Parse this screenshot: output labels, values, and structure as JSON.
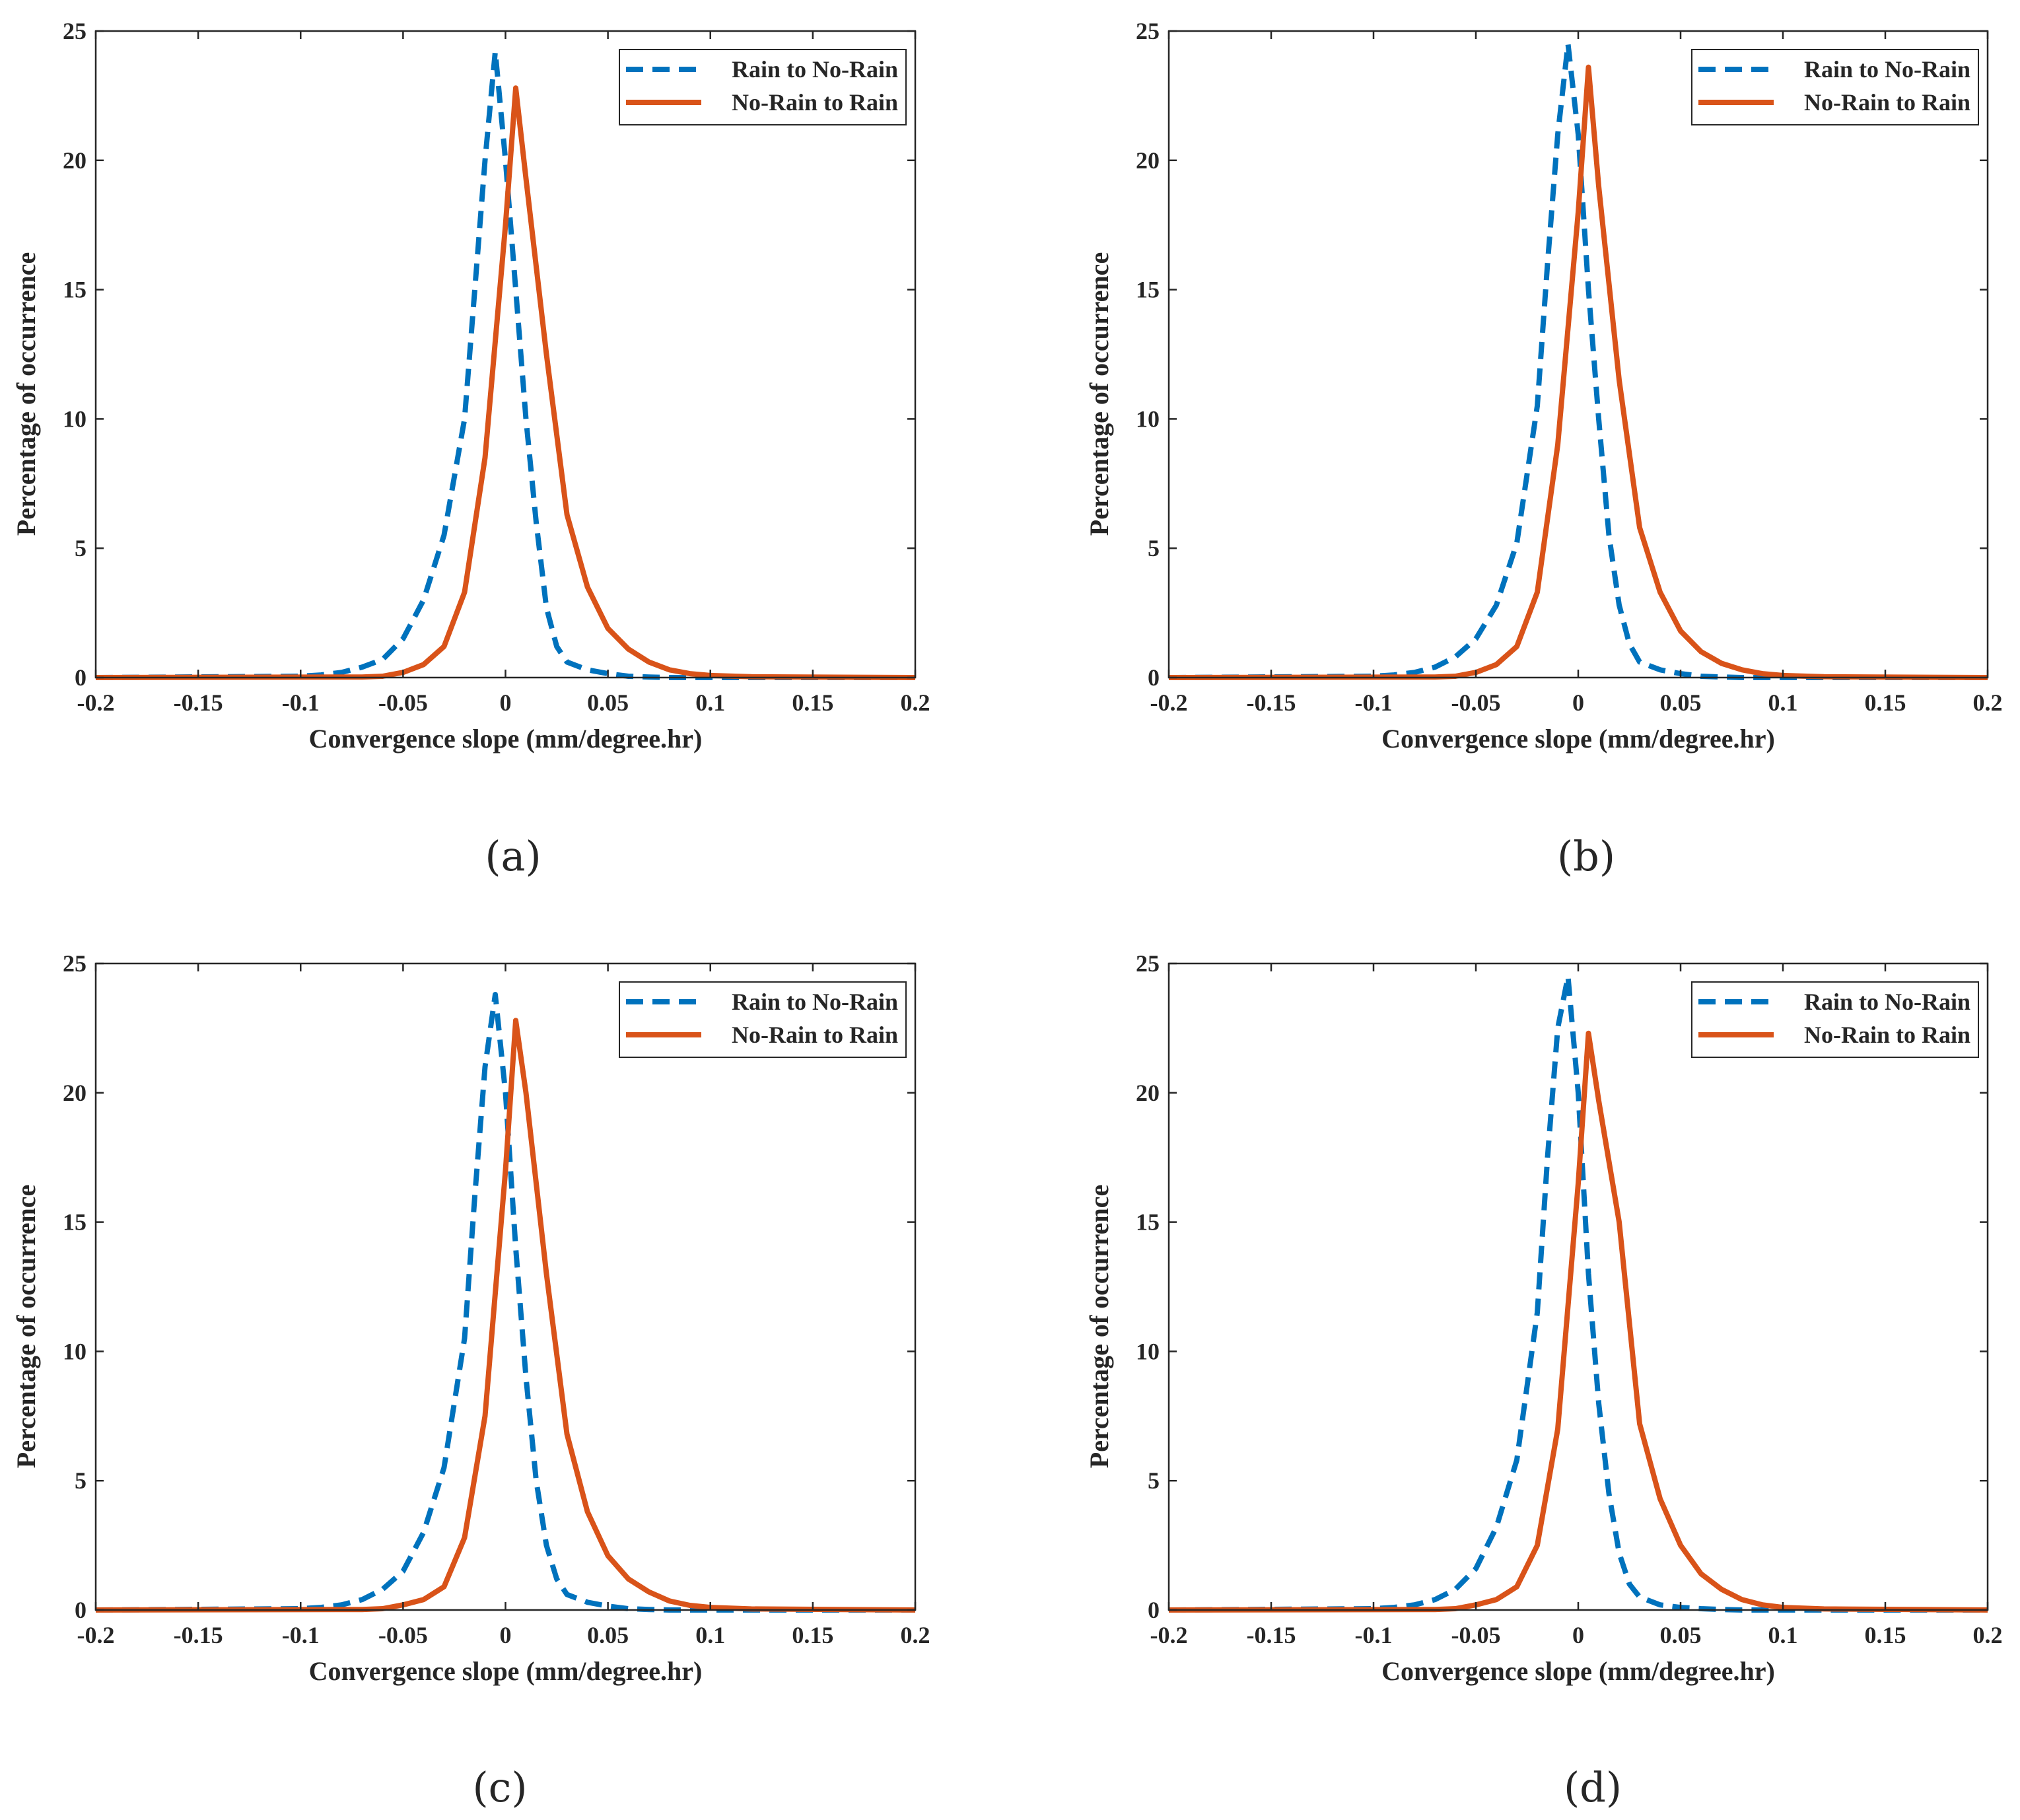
{
  "figure": {
    "captions": [
      "(a)",
      "(b)",
      "(c)",
      "(d)"
    ]
  },
  "chart_data": [
    {
      "type": "line",
      "panel": "(a)",
      "xlabel": "Convergence slope (mm/degree.hr)",
      "ylabel": "Percentage of occurrence",
      "xlim": [
        -0.2,
        0.2
      ],
      "ylim": [
        0,
        25
      ],
      "xticks": [
        "-0.2",
        "-0.15",
        "-0.1",
        "-0.05",
        "0",
        "0.05",
        "0.1",
        "0.15",
        "0.2"
      ],
      "yticks": [
        "0",
        "5",
        "10",
        "15",
        "20",
        "25"
      ],
      "legend_position": "top-right",
      "series": [
        {
          "name": "Rain to No-Rain",
          "style": "dashed",
          "color": "#0072BD",
          "x": [
            -0.2,
            -0.1,
            -0.09,
            -0.08,
            -0.07,
            -0.06,
            -0.05,
            -0.04,
            -0.03,
            -0.02,
            -0.015,
            -0.01,
            -0.005,
            0,
            0.005,
            0.01,
            0.015,
            0.02,
            0.025,
            0.03,
            0.04,
            0.05,
            0.06,
            0.07,
            0.08,
            0.1,
            0.2
          ],
          "y": [
            0,
            0.05,
            0.1,
            0.2,
            0.4,
            0.7,
            1.5,
            3.0,
            5.5,
            10.0,
            15.0,
            20.0,
            24.2,
            20.0,
            15.0,
            10.0,
            6.0,
            2.7,
            1.2,
            0.6,
            0.3,
            0.15,
            0.05,
            0.02,
            0,
            0,
            0
          ]
        },
        {
          "name": "No-Rain to Rain",
          "style": "solid",
          "color": "#D95319",
          "x": [
            -0.2,
            -0.07,
            -0.06,
            -0.05,
            -0.04,
            -0.03,
            -0.02,
            -0.01,
            0,
            0.005,
            0.01,
            0.02,
            0.03,
            0.04,
            0.05,
            0.06,
            0.07,
            0.08,
            0.09,
            0.1,
            0.12,
            0.2
          ],
          "y": [
            0,
            0.02,
            0.05,
            0.2,
            0.5,
            1.2,
            3.3,
            8.5,
            17.5,
            22.8,
            19.3,
            12.5,
            6.3,
            3.5,
            1.9,
            1.1,
            0.6,
            0.3,
            0.15,
            0.08,
            0.03,
            0
          ]
        }
      ]
    },
    {
      "type": "line",
      "panel": "(b)",
      "xlabel": "Convergence slope (mm/degree.hr)",
      "ylabel": "Percentage of occurrence",
      "xlim": [
        -0.2,
        0.2
      ],
      "ylim": [
        0,
        25
      ],
      "xticks": [
        "-0.2",
        "-0.15",
        "-0.1",
        "-0.05",
        "0",
        "0.05",
        "0.1",
        "0.15",
        "0.2"
      ],
      "yticks": [
        "0",
        "5",
        "10",
        "15",
        "20",
        "25"
      ],
      "legend_position": "top-right",
      "series": [
        {
          "name": "Rain to No-Rain",
          "style": "dashed",
          "color": "#0072BD",
          "x": [
            -0.2,
            -0.1,
            -0.09,
            -0.08,
            -0.07,
            -0.06,
            -0.05,
            -0.04,
            -0.03,
            -0.02,
            -0.015,
            -0.01,
            -0.005,
            0,
            0.005,
            0.01,
            0.015,
            0.02,
            0.025,
            0.03,
            0.04,
            0.05,
            0.06,
            0.07,
            0.08,
            0.1,
            0.2
          ],
          "y": [
            0,
            0.05,
            0.1,
            0.2,
            0.4,
            0.8,
            1.5,
            2.8,
            5.2,
            10.5,
            16.0,
            21.0,
            24.5,
            21.0,
            15.0,
            10.0,
            5.5,
            2.8,
            1.3,
            0.6,
            0.3,
            0.15,
            0.05,
            0.02,
            0,
            0,
            0
          ]
        },
        {
          "name": "No-Rain to Rain",
          "style": "solid",
          "color": "#D95319",
          "x": [
            -0.2,
            -0.07,
            -0.06,
            -0.05,
            -0.04,
            -0.03,
            -0.02,
            -0.01,
            0,
            0.005,
            0.01,
            0.02,
            0.03,
            0.04,
            0.05,
            0.06,
            0.07,
            0.08,
            0.09,
            0.1,
            0.12,
            0.2
          ],
          "y": [
            0,
            0.02,
            0.05,
            0.2,
            0.5,
            1.2,
            3.3,
            9.0,
            18.0,
            23.6,
            19.0,
            11.5,
            5.8,
            3.3,
            1.8,
            1.0,
            0.55,
            0.3,
            0.15,
            0.08,
            0.03,
            0
          ]
        }
      ]
    },
    {
      "type": "line",
      "panel": "(c)",
      "xlabel": "Convergence slope (mm/degree.hr)",
      "ylabel": "Percentage of occurrence",
      "xlim": [
        -0.2,
        0.2
      ],
      "ylim": [
        0,
        25
      ],
      "xticks": [
        "-0.2",
        "-0.15",
        "-0.1",
        "-0.05",
        "0",
        "0.05",
        "0.1",
        "0.15",
        "0.2"
      ],
      "yticks": [
        "0",
        "5",
        "10",
        "15",
        "20",
        "25"
      ],
      "legend_position": "top-right",
      "series": [
        {
          "name": "Rain to No-Rain",
          "style": "dashed",
          "color": "#0072BD",
          "x": [
            -0.2,
            -0.1,
            -0.09,
            -0.08,
            -0.07,
            -0.06,
            -0.05,
            -0.04,
            -0.03,
            -0.02,
            -0.015,
            -0.01,
            -0.005,
            0,
            0.005,
            0.01,
            0.015,
            0.02,
            0.025,
            0.03,
            0.04,
            0.05,
            0.06,
            0.07,
            0.08,
            0.1,
            0.2
          ],
          "y": [
            0,
            0.05,
            0.1,
            0.2,
            0.4,
            0.8,
            1.5,
            3.0,
            5.5,
            10.5,
            16.0,
            21.0,
            23.8,
            20.0,
            14.0,
            9.0,
            5.0,
            2.5,
            1.2,
            0.6,
            0.3,
            0.15,
            0.05,
            0.02,
            0,
            0,
            0
          ]
        },
        {
          "name": "No-Rain to Rain",
          "style": "solid",
          "color": "#D95319",
          "x": [
            -0.2,
            -0.07,
            -0.06,
            -0.05,
            -0.04,
            -0.03,
            -0.02,
            -0.01,
            0,
            0.005,
            0.01,
            0.02,
            0.03,
            0.04,
            0.05,
            0.06,
            0.07,
            0.08,
            0.09,
            0.1,
            0.12,
            0.2
          ],
          "y": [
            0,
            0.02,
            0.05,
            0.2,
            0.4,
            0.9,
            2.8,
            7.5,
            17.0,
            22.8,
            20.0,
            13.0,
            6.8,
            3.8,
            2.1,
            1.2,
            0.7,
            0.35,
            0.18,
            0.1,
            0.04,
            0
          ]
        }
      ]
    },
    {
      "type": "line",
      "panel": "(d)",
      "xlabel": "Convergence slope (mm/degree.hr)",
      "ylabel": "Percentage of occurrence",
      "xlim": [
        -0.2,
        0.2
      ],
      "ylim": [
        0,
        25
      ],
      "xticks": [
        "-0.2",
        "-0.15",
        "-0.1",
        "-0.05",
        "0",
        "0.05",
        "0.1",
        "0.15",
        "0.2"
      ],
      "yticks": [
        "0",
        "5",
        "10",
        "15",
        "20",
        "25"
      ],
      "legend_position": "top-right",
      "series": [
        {
          "name": "Rain to No-Rain",
          "style": "dashed",
          "color": "#0072BD",
          "x": [
            -0.2,
            -0.1,
            -0.09,
            -0.08,
            -0.07,
            -0.06,
            -0.05,
            -0.04,
            -0.03,
            -0.02,
            -0.015,
            -0.01,
            -0.005,
            0,
            0.005,
            0.01,
            0.015,
            0.02,
            0.025,
            0.03,
            0.04,
            0.05,
            0.06,
            0.07,
            0.08,
            0.1,
            0.2
          ],
          "y": [
            0,
            0.05,
            0.1,
            0.2,
            0.4,
            0.8,
            1.6,
            3.2,
            5.8,
            11.5,
            17.5,
            22.5,
            24.5,
            20.0,
            13.0,
            8.0,
            4.5,
            2.2,
            1.0,
            0.5,
            0.2,
            0.1,
            0.05,
            0.02,
            0,
            0,
            0
          ]
        },
        {
          "name": "No-Rain to Rain",
          "style": "solid",
          "color": "#D95319",
          "x": [
            -0.2,
            -0.07,
            -0.06,
            -0.05,
            -0.04,
            -0.03,
            -0.02,
            -0.01,
            0,
            0.005,
            0.01,
            0.02,
            0.03,
            0.04,
            0.05,
            0.06,
            0.07,
            0.08,
            0.09,
            0.1,
            0.12,
            0.2
          ],
          "y": [
            0,
            0.02,
            0.05,
            0.2,
            0.4,
            0.9,
            2.5,
            7.0,
            16.5,
            22.3,
            19.7,
            15.0,
            7.2,
            4.3,
            2.5,
            1.4,
            0.8,
            0.4,
            0.2,
            0.1,
            0.04,
            0
          ]
        }
      ]
    }
  ]
}
